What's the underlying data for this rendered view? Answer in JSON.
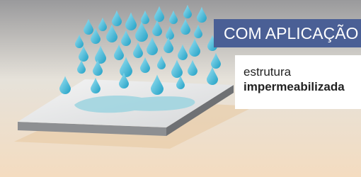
{
  "banner": {
    "title": "COM APLICAÇÃO"
  },
  "caption": {
    "line1": "estrutura",
    "line2": "impermeabilizada"
  }
}
